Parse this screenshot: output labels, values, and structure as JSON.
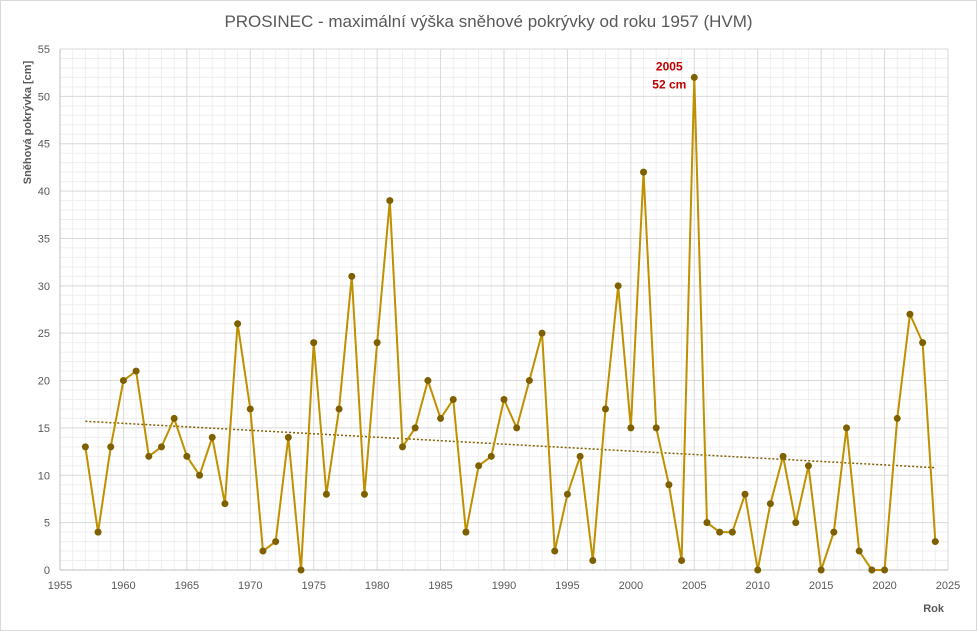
{
  "chart_data": {
    "type": "line",
    "title": "PROSINEC - maximální výška sněhové pokrývky od roku 1957 (HVM)",
    "xlabel": "Rok",
    "ylabel": "Sněhová pokrývka [cm]",
    "xlim": [
      1955,
      2025
    ],
    "ylim": [
      0,
      55
    ],
    "x_ticks": [
      1955,
      1960,
      1965,
      1970,
      1975,
      1980,
      1985,
      1990,
      1995,
      2000,
      2005,
      2010,
      2015,
      2020,
      2025
    ],
    "y_ticks": [
      0,
      5,
      10,
      15,
      20,
      25,
      30,
      35,
      40,
      45,
      50,
      55
    ],
    "grid": true,
    "legend": "none",
    "colors": {
      "line": "#bf9000",
      "marker": "#7f6000",
      "trend": "#7f6000",
      "annotation": "#c00000"
    },
    "series": [
      {
        "x": [
          1957,
          1958,
          1959,
          1960,
          1961,
          1962,
          1963,
          1964,
          1965,
          1966,
          1967,
          1968,
          1969,
          1970,
          1971,
          1972,
          1973,
          1974,
          1975,
          1976,
          1977,
          1978,
          1979,
          1980,
          1981,
          1982,
          1983,
          1984,
          1985,
          1986,
          1987,
          1988,
          1989,
          1990,
          1991,
          1992,
          1993,
          1994,
          1995,
          1996,
          1997,
          1998,
          1999,
          2000,
          2001,
          2002,
          2003,
          2004,
          2005,
          2006,
          2007,
          2008,
          2009,
          2010,
          2011,
          2012,
          2013,
          2014,
          2015,
          2016,
          2017,
          2018,
          2019,
          2020,
          2021,
          2022,
          2023,
          2024
        ],
        "values": [
          13,
          4,
          13,
          20,
          21,
          12,
          13,
          16,
          12,
          10,
          14,
          7,
          26,
          17,
          2,
          3,
          14,
          0,
          24,
          8,
          17,
          31,
          8,
          24,
          39,
          13,
          15,
          20,
          16,
          18,
          4,
          11,
          12,
          18,
          15,
          20,
          25,
          2,
          8,
          12,
          1,
          17,
          30,
          15,
          42,
          15,
          9,
          1,
          52,
          5,
          4,
          4,
          8,
          0,
          7,
          12,
          5,
          11,
          0,
          4,
          15,
          2,
          0,
          0,
          16,
          27,
          24,
          3
        ]
      }
    ],
    "trendline": {
      "type": "linear",
      "style": "dotted",
      "y_start": 15.7,
      "y_end": 10.8
    },
    "annotations": [
      {
        "x": 2005,
        "y": 52,
        "lines": [
          "2005",
          "52 cm"
        ]
      }
    ]
  }
}
